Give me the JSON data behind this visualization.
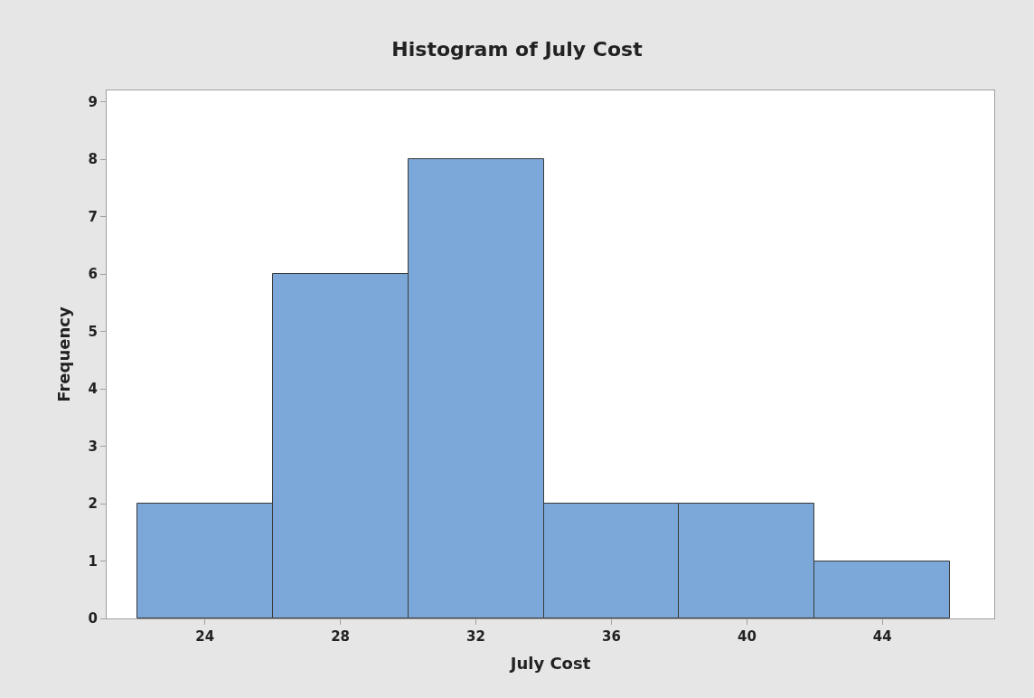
{
  "chart_data": {
    "type": "histogram",
    "title": "Histogram of July Cost",
    "xlabel": "July Cost",
    "ylabel": "Frequency",
    "bins": [
      22,
      26,
      30,
      34,
      38,
      42,
      46
    ],
    "values": [
      2,
      6,
      8,
      2,
      2,
      1
    ],
    "color": "#7ba7d9",
    "xlim": [
      21.1,
      47.3
    ],
    "xticks": [
      24,
      28,
      32,
      36,
      40,
      44
    ],
    "ylim": [
      0,
      9.2
    ],
    "yticks": [
      0,
      1,
      2,
      3,
      4,
      5,
      6,
      7,
      8,
      9
    ]
  }
}
